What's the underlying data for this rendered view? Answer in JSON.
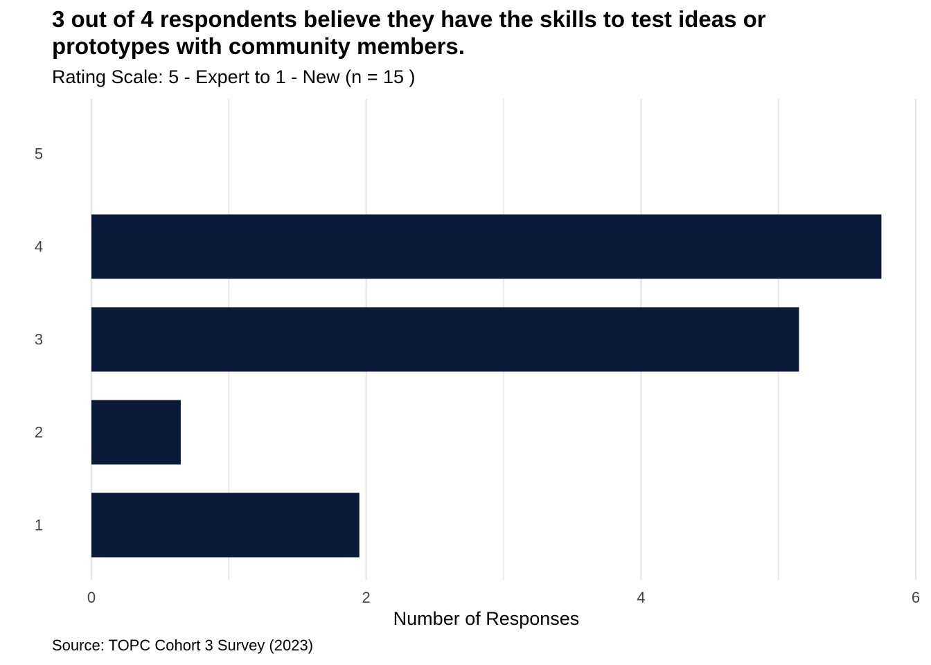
{
  "chart_data": {
    "type": "bar",
    "orientation": "horizontal",
    "title": "3 out of 4 respondents believe they have the skills to test ideas or prototypes with community members.",
    "subtitle": "Rating Scale: 5 - Expert to 1 - New (n = 15 )",
    "caption": "Source: TOPC Cohort 3 Survey (2023)",
    "xlabel": "Number of Responses",
    "ylabel": "",
    "categories": [
      "5",
      "4",
      "3",
      "2",
      "1"
    ],
    "values": [
      0,
      5.75,
      5.15,
      0.65,
      1.95
    ],
    "xlim": [
      0,
      6
    ],
    "xticks": [
      "0",
      "2",
      "4",
      "6"
    ],
    "grid": true,
    "legend": "none",
    "bar_color": "#0a1a38",
    "grid_color": "#e5e5e5"
  }
}
